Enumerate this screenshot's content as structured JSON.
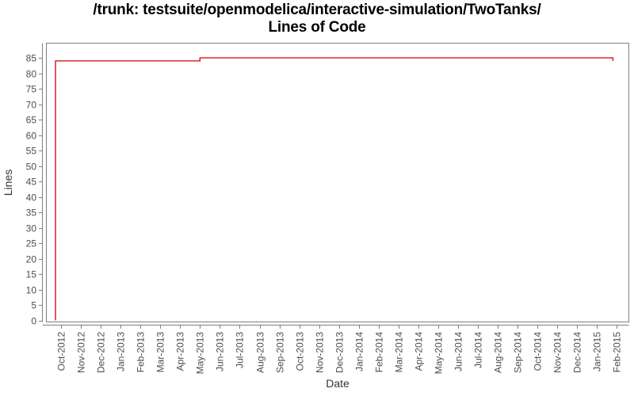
{
  "chart_data": {
    "type": "line",
    "title": "/trunk: testsuite/openmodelica/interactive-simulation/TwoTanks/",
    "subtitle": "Lines of Code",
    "xlabel": "Date",
    "ylabel": "Lines",
    "x_tick_labels": [
      "Oct-2012",
      "Nov-2012",
      "Dec-2012",
      "Jan-2013",
      "Feb-2013",
      "Mar-2013",
      "Apr-2013",
      "May-2013",
      "Jun-2013",
      "Jul-2013",
      "Aug-2013",
      "Sep-2013",
      "Oct-2013",
      "Nov-2013",
      "Dec-2013",
      "Jan-2014",
      "Feb-2014",
      "Mar-2014",
      "Apr-2014",
      "May-2014",
      "Jun-2014",
      "Jul-2014",
      "Aug-2014",
      "Sep-2014",
      "Oct-2014",
      "Nov-2014",
      "Dec-2014",
      "Jan-2015",
      "Feb-2015"
    ],
    "y_ticks": [
      0,
      5,
      10,
      15,
      20,
      25,
      30,
      35,
      40,
      45,
      50,
      55,
      60,
      65,
      70,
      75,
      80,
      85
    ],
    "ylim": [
      0,
      87
    ],
    "grid": false,
    "legend": "none",
    "line_color": "#d40000",
    "axis_color": "#808080",
    "tick_label_color": "#4d4d4d",
    "axis_label_color": "#333333",
    "background_color": "#ffffff",
    "series": [
      {
        "name": "Lines of Code",
        "t_units": "months since Oct-2012 tick (fractional)",
        "points": [
          {
            "t": -0.28,
            "date": "2012-09",
            "loc": 0
          },
          {
            "t": -0.28,
            "date": "2012-09",
            "loc": 84
          },
          {
            "t": 7.0,
            "date": "2013-05",
            "loc": 84
          },
          {
            "t": 7.0,
            "date": "2013-05",
            "loc": 85
          },
          {
            "t": 27.8,
            "date": "2015-01",
            "loc": 85
          },
          {
            "t": 27.8,
            "date": "2015-01",
            "loc": 84
          }
        ]
      }
    ]
  }
}
